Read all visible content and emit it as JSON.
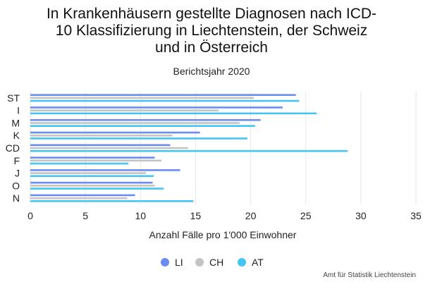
{
  "chart_data": {
    "type": "bar",
    "orientation": "horizontal",
    "title_lines": [
      "In Krankenhäusern gestellte Diagnosen nach ICD-",
      "10 Klassifizierung in Liechtenstein, der Schweiz",
      "und in Österreich"
    ],
    "subtitle": "Berichtsjahr 2020",
    "categories": [
      "ST",
      "I",
      "M",
      "K",
      "CD",
      "F",
      "J",
      "O",
      "N"
    ],
    "series": [
      {
        "name": "LI",
        "color": "#6b8cf0",
        "values": [
          24.1,
          22.9,
          20.9,
          15.4,
          12.7,
          11.3,
          13.6,
          11.1,
          9.5
        ]
      },
      {
        "name": "CH",
        "color": "#c4c4c4",
        "values": [
          20.3,
          17.1,
          19.0,
          12.9,
          14.3,
          11.9,
          10.5,
          11.3,
          8.8
        ]
      },
      {
        "name": "AT",
        "color": "#45c6f0",
        "values": [
          24.4,
          26.0,
          20.4,
          19.7,
          28.8,
          8.9,
          11.2,
          12.1,
          14.8
        ]
      }
    ],
    "xlim": [
      0,
      35
    ],
    "xticks": [
      0,
      5,
      10,
      15,
      20,
      25,
      30,
      35
    ],
    "xlabel": "Anzahl Fälle pro 1'000 Einwohner",
    "ylabel": "",
    "grid": "vertical",
    "legend": "bottom",
    "credit": "Amt für Statistik Liechtenstein"
  }
}
